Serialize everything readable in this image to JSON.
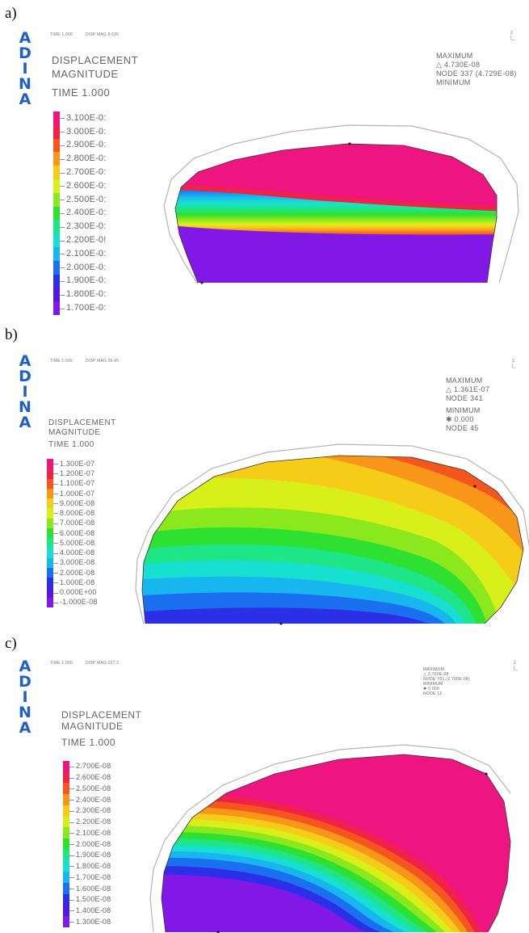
{
  "panels": [
    {
      "label": "a)",
      "logo": [
        "A",
        "D",
        "I",
        "N",
        "A"
      ],
      "time_header": "TIME 1.000",
      "disp_header": "DISP MAG 8.636",
      "title": [
        "DISPLACEMENT",
        "MAGNITUDE",
        "TIME 1.000"
      ],
      "info": [
        "MAXIMUM",
        "△ 4.730E-08",
        "NODE 337 (4.729E-08)",
        "MINIMUM"
      ],
      "legend": {
        "colors": [
          "#ee1580",
          "#f0224a",
          "#f5561e",
          "#f8961a",
          "#f5cd18",
          "#d9ef1a",
          "#8ae81c",
          "#2ee030",
          "#1ee586",
          "#18e0d0",
          "#18b6ee",
          "#1a70ef",
          "#2b2fe6",
          "#5418dc",
          "#8218e6"
        ],
        "labels": [
          "3.100E-0:",
          "3.000E-0:",
          "2.900E-0:",
          "2.800E-0:",
          "2.700E-0:",
          "2.600E-0:",
          "2.500E-0:",
          "2.400E-0:",
          "2.300E-0:",
          "2.200E-0!",
          "2.100E-0:",
          "2.000E-0:",
          "1.900E-0:",
          "1.800E-0:",
          "1.700E-0:"
        ]
      }
    },
    {
      "label": "b)",
      "logo": [
        "A",
        "D",
        "I",
        "N",
        "A"
      ],
      "time_header": "TIME 1.000",
      "disp_header": "DISP MAG 36.45",
      "title": [
        "DISPLACEMENT",
        "MAGNITUDE",
        "TIME 1.000"
      ],
      "info": [
        "MAXIMUM",
        "△ 1.361E-07",
        "NODE 341",
        "MINIMUM",
        "✱ 0.000",
        "NODE 45"
      ],
      "legend": {
        "colors": [
          "#ee1580",
          "#f0224a",
          "#f5561e",
          "#f8961a",
          "#f5cd18",
          "#d9ef1a",
          "#8ae81c",
          "#2ee030",
          "#1ee586",
          "#18e0d0",
          "#18b6ee",
          "#1a70ef",
          "#2b2fe6",
          "#5418dc",
          "#8218e6"
        ],
        "labels": [
          "1.300E-07",
          "1.200E-07",
          "1.100E-07",
          "1.000E-07",
          "9.000E-08",
          "8.000E-08",
          "7.000E-08",
          "6.000E-08",
          "5.000E-08",
          "4.000E-08",
          "3.000E-08",
          "2.000E-08",
          "1.000E-08",
          "0.000E+00",
          "-1.000E-08"
        ]
      }
    },
    {
      "label": "c)",
      "logo": [
        "A",
        "D",
        "I",
        "N",
        "A"
      ],
      "time_header": "TIME 1.000",
      "disp_header": "DISP MAG 107.3",
      "title": [
        "DISPLACEMENT",
        "MAGNITUDE",
        "TIME 1.000"
      ],
      "info": [
        "MAXIMUM",
        "△ 2.760E-08",
        "NODE 701 (2.760E-08)",
        "MINIMUM",
        "✱ 0.000",
        "NODE 12"
      ],
      "legend": {
        "colors": [
          "#ee1580",
          "#f0224a",
          "#f5561e",
          "#f8961a",
          "#f5cd18",
          "#d9ef1a",
          "#8ae81c",
          "#2ee030",
          "#1ee586",
          "#18e0d0",
          "#18b6ee",
          "#1a70ef",
          "#2b2fe6",
          "#5418dc",
          "#8218e6"
        ],
        "labels": [
          "2.700E-08",
          "2.600E-08",
          "2.500E-08",
          "2.400E-08",
          "2.300E-08",
          "2.200E-08",
          "2.100E-08",
          "2.000E-08",
          "1.900E-08",
          "1.800E-08",
          "1.700E-08",
          "1.600E-08",
          "1.500E-08",
          "1.400E-08",
          "1.300E-08"
        ]
      }
    }
  ]
}
